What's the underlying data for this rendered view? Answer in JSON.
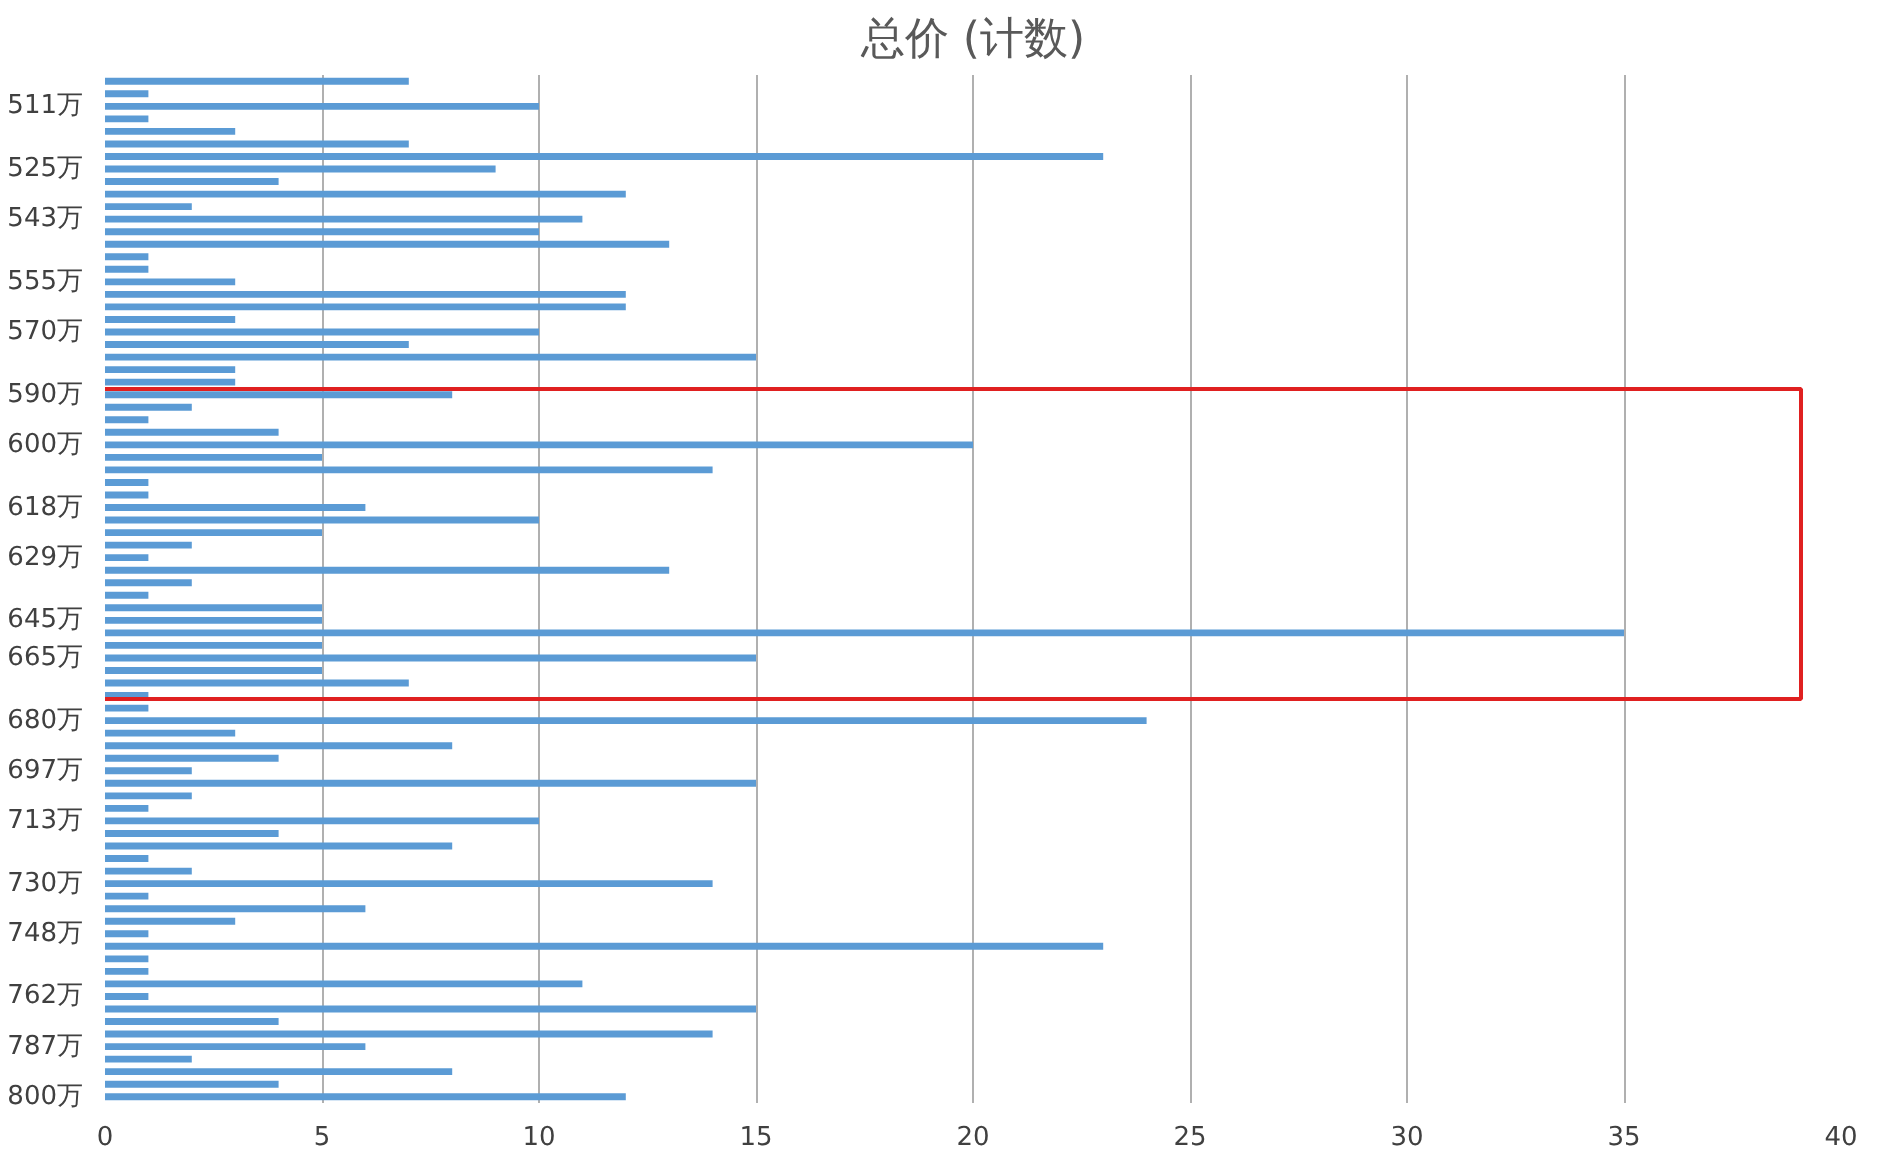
{
  "chart_data": {
    "type": "bar",
    "orientation": "horizontal",
    "title": "总价 (计数)",
    "categories": [
      null,
      null,
      "511万",
      null,
      null,
      null,
      null,
      "525万",
      null,
      null,
      null,
      "543万",
      null,
      null,
      null,
      null,
      "555万",
      null,
      null,
      null,
      "570万",
      null,
      null,
      null,
      null,
      "590万",
      null,
      null,
      null,
      "600万",
      null,
      null,
      null,
      null,
      "618万",
      null,
      null,
      null,
      "629万",
      null,
      null,
      null,
      null,
      "645万",
      null,
      null,
      "665万",
      null,
      null,
      null,
      null,
      "680万",
      null,
      null,
      null,
      "697万",
      null,
      null,
      null,
      "713万",
      null,
      null,
      null,
      null,
      "730万",
      null,
      null,
      null,
      "748万",
      null,
      null,
      null,
      null,
      "762万",
      null,
      null,
      null,
      "787万",
      null,
      null,
      null,
      "800万"
    ],
    "values": [
      7,
      1,
      10,
      1,
      3,
      7,
      23,
      9,
      4,
      12,
      2,
      11,
      10,
      13,
      1,
      1,
      3,
      12,
      12,
      3,
      10,
      7,
      15,
      3,
      3,
      8,
      2,
      1,
      4,
      20,
      5,
      14,
      1,
      1,
      6,
      10,
      5,
      2,
      1,
      13,
      2,
      1,
      5,
      5,
      35,
      5,
      15,
      5,
      7,
      1,
      1,
      24,
      3,
      8,
      4,
      2,
      15,
      2,
      1,
      10,
      4,
      8,
      1,
      2,
      14,
      1,
      6,
      3,
      1,
      23,
      1,
      1,
      11,
      1,
      15,
      4,
      14,
      6,
      2,
      8,
      4,
      12
    ],
    "color": "#5b9bd5",
    "xlim": [
      0,
      40
    ],
    "xticks": [
      0,
      5,
      10,
      15,
      20,
      25,
      30,
      35,
      40
    ],
    "grid": "x"
  }
}
